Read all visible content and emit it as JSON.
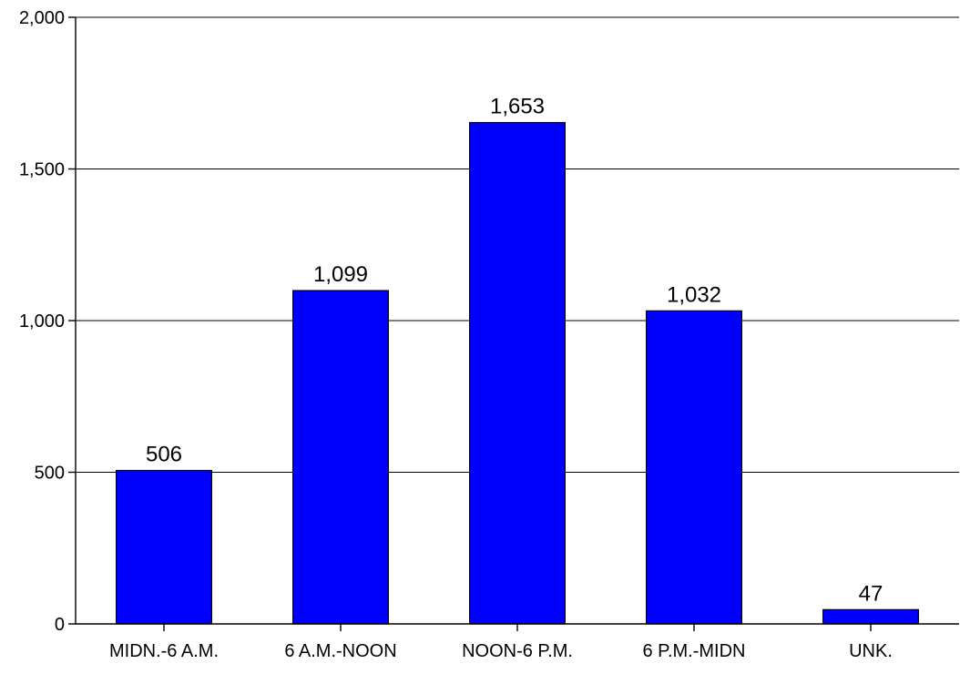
{
  "chart_data": {
    "type": "bar",
    "categories": [
      "MIDN.-6 A.M.",
      "6 A.M.-NOON",
      "NOON-6 P.M.",
      "6 P.M.-MIDN",
      "UNK."
    ],
    "values": [
      506,
      1099,
      1653,
      1032,
      47
    ],
    "value_labels": [
      "506",
      "1,099",
      "1,653",
      "1,032",
      "47"
    ],
    "yticks": [
      0,
      500,
      1000,
      1500,
      2000
    ],
    "ytick_labels": [
      "0",
      "500",
      "1,000",
      "1,500",
      "2,000"
    ],
    "ylim": [
      0,
      2000
    ],
    "grid": true,
    "bar_color": "#0000ff"
  }
}
